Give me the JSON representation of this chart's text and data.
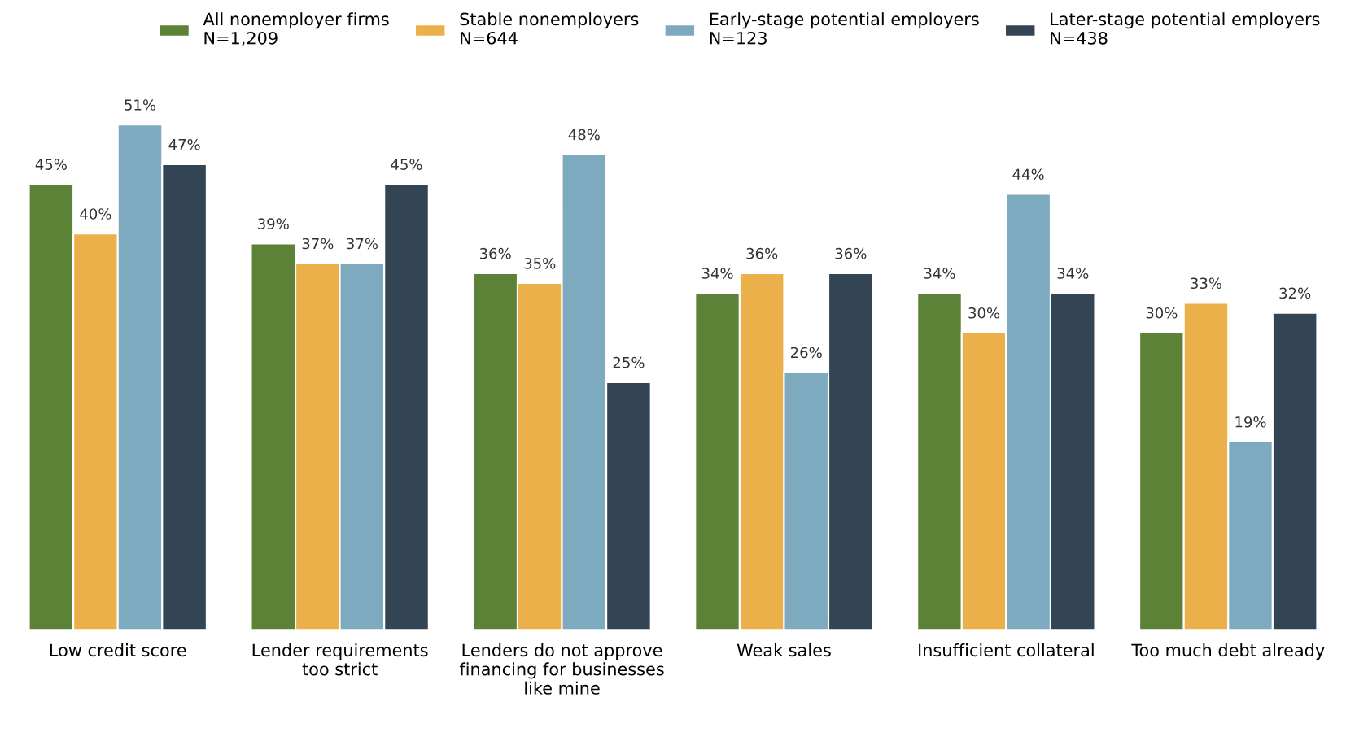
{
  "chart_data": {
    "type": "bar",
    "categories": [
      "Low credit score",
      "Lender requirements\ntoo strict",
      "Lenders do not approve\nfinancing for businesses\nlike mine",
      "Weak sales",
      "Insufficient collateral",
      "Too much debt already"
    ],
    "series": [
      {
        "name": "All nonemployer firms\nN=1,209",
        "color": "#5b8236",
        "values": [
          45,
          39,
          36,
          34,
          34,
          30
        ],
        "value_labels": [
          "45%",
          "39%",
          "36%",
          "34%",
          "34%",
          "30%"
        ]
      },
      {
        "name": "Stable nonemployers\nN=644",
        "color": "#ecb04a",
        "values": [
          40,
          37,
          35,
          36,
          30,
          33
        ],
        "value_labels": [
          "40%",
          "37%",
          "35%",
          "36%",
          "30%",
          "33%"
        ]
      },
      {
        "name": "Early-stage potential employers\nN=123",
        "color": "#7eaac0",
        "values": [
          51,
          37,
          48,
          26,
          44,
          19
        ],
        "value_labels": [
          "51%",
          "37%",
          "48%",
          "26%",
          "44%",
          "19%"
        ]
      },
      {
        "name": "Later-stage potential employers\nN=438",
        "color": "#334455",
        "values": [
          47,
          45,
          25,
          36,
          34,
          32
        ],
        "value_labels": [
          "47%",
          "45%",
          "25%",
          "36%",
          "34%",
          "32%"
        ]
      }
    ],
    "legend": "top",
    "tick_labels": "x"
  }
}
